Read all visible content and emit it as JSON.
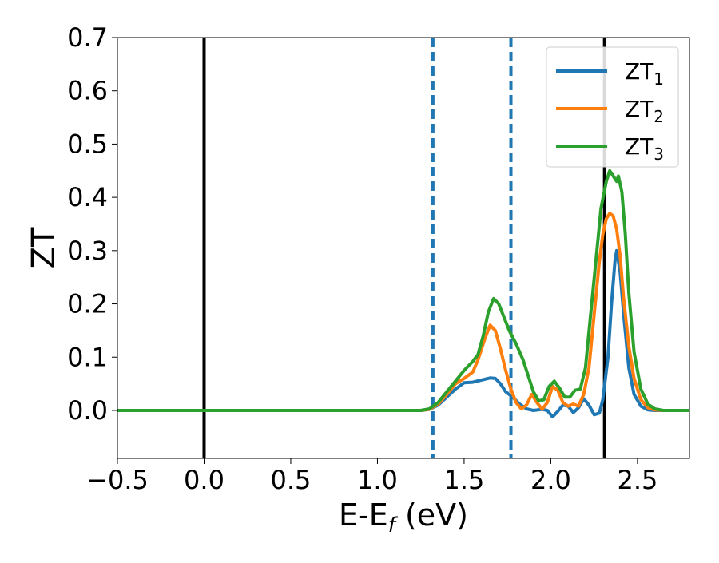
{
  "chart_data": {
    "type": "line",
    "title": "",
    "xlabel": "E-E",
    "xlabel_sub": "f",
    "xlabel_unit": " (eV)",
    "ylabel": "ZT",
    "xlim": [
      -0.5,
      2.8
    ],
    "ylim": [
      -0.09,
      0.7
    ],
    "xticks": [
      -0.5,
      0.0,
      0.5,
      1.0,
      1.5,
      2.0,
      2.5
    ],
    "xtick_labels": [
      "−0.5",
      "0.0",
      "0.5",
      "1.0",
      "1.5",
      "2.0",
      "2.5"
    ],
    "yticks": [
      0.0,
      0.1,
      0.2,
      0.3,
      0.4,
      0.5,
      0.6,
      0.7
    ],
    "ytick_labels": [
      "0.0",
      "0.1",
      "0.2",
      "0.3",
      "0.4",
      "0.5",
      "0.6",
      "0.7"
    ],
    "grid": false,
    "legend_position": "top-right",
    "vlines": [
      {
        "x": 0.0,
        "style": "solid",
        "color": "#000000"
      },
      {
        "x": 2.31,
        "style": "solid",
        "color": "#000000"
      },
      {
        "x": 1.32,
        "style": "dashed",
        "color": "#1f77b4"
      },
      {
        "x": 1.77,
        "style": "dashed",
        "color": "#1f77b4"
      }
    ],
    "series": [
      {
        "name": "ZT",
        "name_sub": "1",
        "color": "#1f77b4",
        "points": [
          [
            -0.5,
            0
          ],
          [
            1.25,
            0
          ],
          [
            1.3,
            0.002
          ],
          [
            1.35,
            0.01
          ],
          [
            1.4,
            0.025
          ],
          [
            1.45,
            0.04
          ],
          [
            1.5,
            0.052
          ],
          [
            1.55,
            0.053
          ],
          [
            1.6,
            0.057
          ],
          [
            1.65,
            0.061
          ],
          [
            1.68,
            0.06
          ],
          [
            1.71,
            0.05
          ],
          [
            1.74,
            0.035
          ],
          [
            1.78,
            0.025
          ],
          [
            1.82,
            0.012
          ],
          [
            1.86,
            0.003
          ],
          [
            1.9,
            0.0
          ],
          [
            1.95,
            0.002
          ],
          [
            1.98,
            0.0
          ],
          [
            2.01,
            -0.012
          ],
          [
            2.04,
            -0.002
          ],
          [
            2.07,
            0.01
          ],
          [
            2.1,
            0.008
          ],
          [
            2.13,
            -0.004
          ],
          [
            2.16,
            0.005
          ],
          [
            2.19,
            0.022
          ],
          [
            2.22,
            0.01
          ],
          [
            2.25,
            -0.008
          ],
          [
            2.28,
            -0.005
          ],
          [
            2.3,
            0.02
          ],
          [
            2.33,
            0.1
          ],
          [
            2.35,
            0.2
          ],
          [
            2.37,
            0.28
          ],
          [
            2.38,
            0.3
          ],
          [
            2.4,
            0.26
          ],
          [
            2.42,
            0.18
          ],
          [
            2.45,
            0.08
          ],
          [
            2.48,
            0.03
          ],
          [
            2.52,
            0.008
          ],
          [
            2.56,
            0.001
          ],
          [
            2.6,
            0
          ],
          [
            2.8,
            0
          ]
        ]
      },
      {
        "name": "ZT",
        "name_sub": "2",
        "color": "#ff7f0e",
        "points": [
          [
            -0.5,
            0
          ],
          [
            1.25,
            0
          ],
          [
            1.3,
            0.002
          ],
          [
            1.35,
            0.012
          ],
          [
            1.4,
            0.03
          ],
          [
            1.45,
            0.05
          ],
          [
            1.5,
            0.06
          ],
          [
            1.55,
            0.072
          ],
          [
            1.58,
            0.095
          ],
          [
            1.62,
            0.135
          ],
          [
            1.65,
            0.16
          ],
          [
            1.68,
            0.15
          ],
          [
            1.71,
            0.115
          ],
          [
            1.74,
            0.075
          ],
          [
            1.77,
            0.04
          ],
          [
            1.8,
            0.015
          ],
          [
            1.83,
            0.003
          ],
          [
            1.86,
            0.01
          ],
          [
            1.89,
            0.03
          ],
          [
            1.92,
            0.015
          ],
          [
            1.95,
            0.002
          ],
          [
            1.98,
            0.015
          ],
          [
            2.01,
            0.045
          ],
          [
            2.04,
            0.038
          ],
          [
            2.07,
            0.015
          ],
          [
            2.1,
            0.008
          ],
          [
            2.13,
            0.012
          ],
          [
            2.16,
            0.008
          ],
          [
            2.19,
            0.03
          ],
          [
            2.22,
            0.08
          ],
          [
            2.25,
            0.18
          ],
          [
            2.28,
            0.28
          ],
          [
            2.3,
            0.33
          ],
          [
            2.32,
            0.36
          ],
          [
            2.34,
            0.37
          ],
          [
            2.36,
            0.365
          ],
          [
            2.38,
            0.34
          ],
          [
            2.4,
            0.29
          ],
          [
            2.42,
            0.21
          ],
          [
            2.45,
            0.12
          ],
          [
            2.48,
            0.06
          ],
          [
            2.52,
            0.02
          ],
          [
            2.56,
            0.005
          ],
          [
            2.6,
            0.001
          ],
          [
            2.65,
            0
          ],
          [
            2.8,
            0
          ]
        ]
      },
      {
        "name": "ZT",
        "name_sub": "3",
        "color": "#2ca02c",
        "points": [
          [
            -0.5,
            0
          ],
          [
            1.25,
            0
          ],
          [
            1.3,
            0.003
          ],
          [
            1.35,
            0.015
          ],
          [
            1.4,
            0.035
          ],
          [
            1.45,
            0.055
          ],
          [
            1.5,
            0.075
          ],
          [
            1.55,
            0.092
          ],
          [
            1.58,
            0.105
          ],
          [
            1.61,
            0.14
          ],
          [
            1.64,
            0.185
          ],
          [
            1.67,
            0.21
          ],
          [
            1.7,
            0.2
          ],
          [
            1.73,
            0.175
          ],
          [
            1.76,
            0.15
          ],
          [
            1.8,
            0.125
          ],
          [
            1.84,
            0.095
          ],
          [
            1.87,
            0.065
          ],
          [
            1.9,
            0.035
          ],
          [
            1.93,
            0.018
          ],
          [
            1.96,
            0.02
          ],
          [
            1.99,
            0.045
          ],
          [
            2.02,
            0.055
          ],
          [
            2.05,
            0.042
          ],
          [
            2.08,
            0.025
          ],
          [
            2.11,
            0.025
          ],
          [
            2.14,
            0.038
          ],
          [
            2.17,
            0.04
          ],
          [
            2.2,
            0.08
          ],
          [
            2.23,
            0.18
          ],
          [
            2.26,
            0.28
          ],
          [
            2.29,
            0.38
          ],
          [
            2.32,
            0.43
          ],
          [
            2.34,
            0.45
          ],
          [
            2.36,
            0.44
          ],
          [
            2.38,
            0.43
          ],
          [
            2.39,
            0.44
          ],
          [
            2.41,
            0.41
          ],
          [
            2.43,
            0.33
          ],
          [
            2.45,
            0.22
          ],
          [
            2.48,
            0.11
          ],
          [
            2.52,
            0.04
          ],
          [
            2.56,
            0.012
          ],
          [
            2.6,
            0.003
          ],
          [
            2.65,
            0
          ],
          [
            2.8,
            0
          ]
        ]
      }
    ]
  }
}
